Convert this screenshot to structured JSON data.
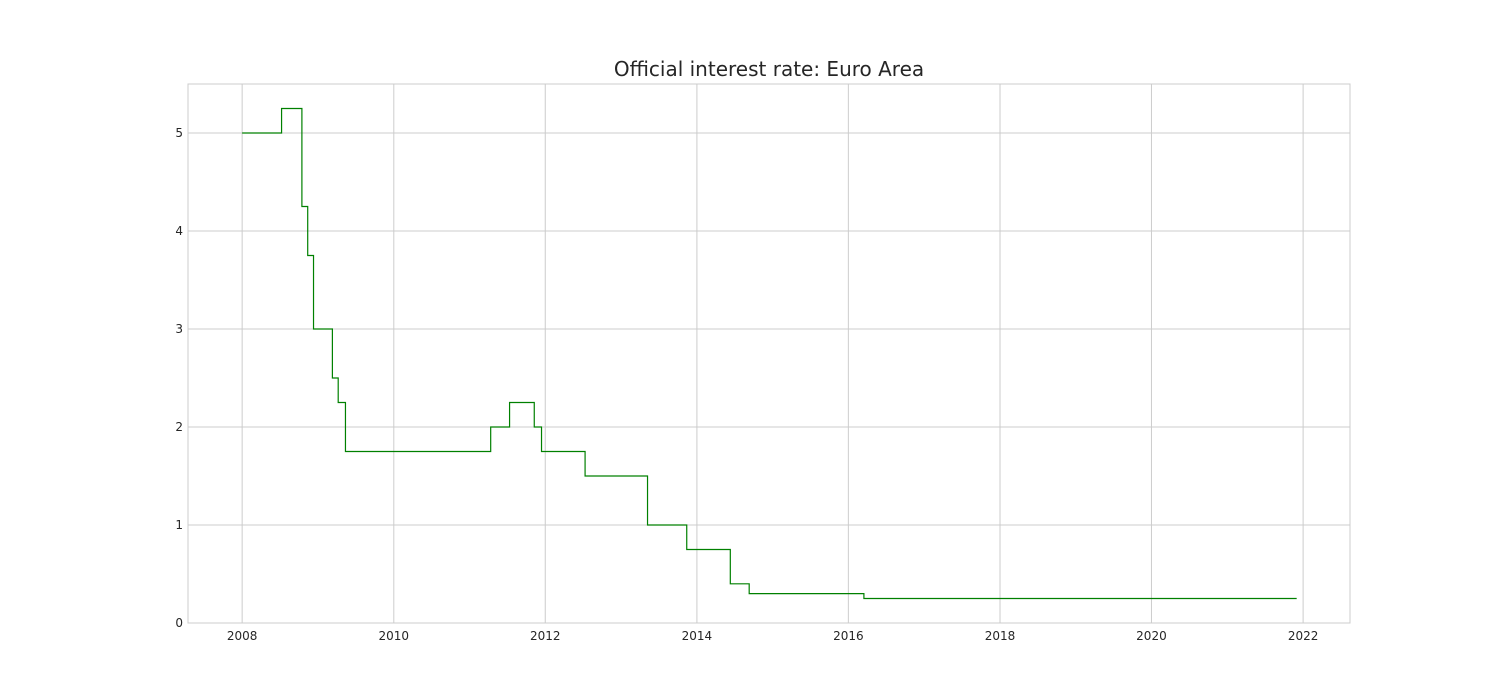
{
  "chart_data": {
    "type": "line",
    "title": "Official interest rate: Euro Area",
    "xlabel": "",
    "ylabel": "",
    "xlim": [
      "2007-04-15",
      "2022-08-15"
    ],
    "ylim": [
      0,
      5.5
    ],
    "x_ticks": [
      "2008",
      "2010",
      "2012",
      "2014",
      "2016",
      "2018",
      "2020",
      "2022"
    ],
    "y_ticks": [
      "0",
      "1",
      "2",
      "3",
      "4",
      "5"
    ],
    "grid": true,
    "legend": "none",
    "step": "post",
    "series": [
      {
        "color": "#008000",
        "points": [
          [
            "2008-01-01",
            5.0
          ],
          [
            "2008-07-09",
            5.25
          ],
          [
            "2008-10-15",
            4.25
          ],
          [
            "2008-11-12",
            3.75
          ],
          [
            "2008-12-10",
            3.0
          ],
          [
            "2009-03-11",
            2.5
          ],
          [
            "2009-04-08",
            2.25
          ],
          [
            "2009-05-13",
            1.75
          ],
          [
            "2011-04-13",
            2.0
          ],
          [
            "2011-07-13",
            2.25
          ],
          [
            "2011-11-09",
            2.0
          ],
          [
            "2011-12-14",
            1.75
          ],
          [
            "2012-07-11",
            1.5
          ],
          [
            "2013-05-08",
            1.0
          ],
          [
            "2013-11-13",
            0.75
          ],
          [
            "2014-06-11",
            0.4
          ],
          [
            "2014-09-10",
            0.3
          ],
          [
            "2016-03-16",
            0.25
          ],
          [
            "2021-12-01",
            0.25
          ]
        ]
      }
    ]
  }
}
